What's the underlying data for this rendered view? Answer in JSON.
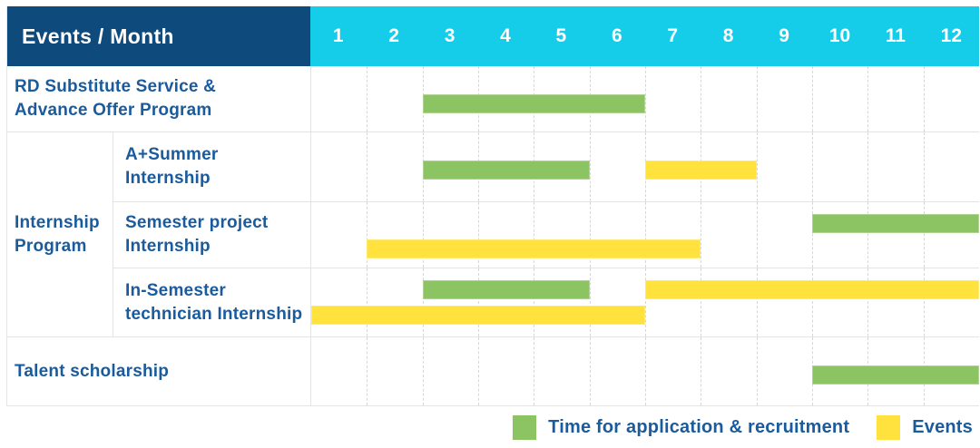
{
  "header": {
    "label": "Events / Month",
    "months": [
      "1",
      "2",
      "3",
      "4",
      "5",
      "6",
      "7",
      "8",
      "9",
      "10",
      "11",
      "12"
    ]
  },
  "group_label": "Internship\nProgram",
  "rows": [
    {
      "label": "RD Substitute Service &\nAdvance Offer Program",
      "bars": [
        {
          "color": "green",
          "start": 3,
          "end": 6,
          "band": "single"
        }
      ]
    },
    {
      "label": "A+Summer\nInternship",
      "bars": [
        {
          "color": "green",
          "start": 3,
          "end": 5,
          "band": "single"
        },
        {
          "color": "yellow",
          "start": 7,
          "end": 8,
          "band": "single"
        }
      ]
    },
    {
      "label": "Semester project\nInternship",
      "bars": [
        {
          "color": "green",
          "start": 10,
          "end": 12,
          "band": "top"
        },
        {
          "color": "yellow",
          "start": 2,
          "end": 7,
          "band": "bottom"
        }
      ]
    },
    {
      "label": "In-Semester\ntechnician Internship",
      "bars": [
        {
          "color": "green",
          "start": 3,
          "end": 5,
          "band": "top"
        },
        {
          "color": "yellow",
          "start": 7,
          "end": 12,
          "band": "top"
        },
        {
          "color": "yellow",
          "start": 1,
          "end": 6,
          "band": "bottom"
        }
      ]
    },
    {
      "label": "Talent scholarship",
      "bars": [
        {
          "color": "green",
          "start": 10,
          "end": 12,
          "band": "single"
        }
      ]
    }
  ],
  "legend": [
    {
      "color": "green",
      "label": "Time for application & recruitment"
    },
    {
      "color": "yellow",
      "label": "Events"
    }
  ],
  "colors": {
    "header_bg": "#0f4a7d",
    "month_header_bg": "#15cde9",
    "label_text": "#1a5b9d",
    "green_bar": "#8cc464",
    "yellow_bar": "#ffe23d",
    "gridline": "#d6d6d6"
  },
  "chart_data": {
    "type": "table",
    "title": "Events / Month",
    "x_axis": {
      "label": "Month",
      "ticks": [
        1,
        2,
        3,
        4,
        5,
        6,
        7,
        8,
        9,
        10,
        11,
        12
      ]
    },
    "rows": [
      {
        "event": "RD Substitute Service & Advance Offer Program",
        "group": null,
        "application_recruitment_months": [
          [
            3,
            6
          ]
        ],
        "events_months": []
      },
      {
        "event": "A+Summer Internship",
        "group": "Internship Program",
        "application_recruitment_months": [
          [
            3,
            5
          ]
        ],
        "events_months": [
          [
            7,
            8
          ]
        ]
      },
      {
        "event": "Semester project Internship",
        "group": "Internship Program",
        "application_recruitment_months": [
          [
            10,
            12
          ]
        ],
        "events_months": [
          [
            2,
            7
          ]
        ]
      },
      {
        "event": "In-Semester technician Internship",
        "group": "Internship Program",
        "application_recruitment_months": [
          [
            3,
            5
          ]
        ],
        "events_months": [
          [
            1,
            6
          ],
          [
            7,
            12
          ]
        ]
      },
      {
        "event": "Talent scholarship",
        "group": null,
        "application_recruitment_months": [
          [
            10,
            12
          ]
        ],
        "events_months": []
      }
    ],
    "legend": [
      "Time for application & recruitment",
      "Events"
    ],
    "legend_position": "bottom-right",
    "grid": true
  }
}
